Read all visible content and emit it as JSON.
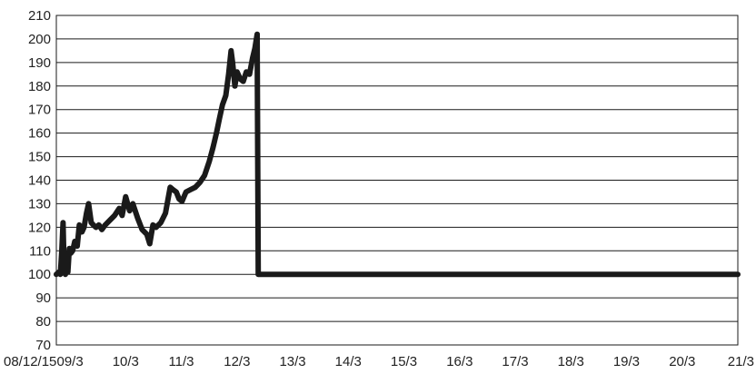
{
  "chart_data": {
    "type": "line",
    "title": "",
    "xlabel": "",
    "ylabel": "",
    "ylim": [
      70,
      210
    ],
    "yticks": [
      70,
      80,
      90,
      100,
      110,
      120,
      130,
      140,
      150,
      160,
      170,
      180,
      190,
      200,
      210
    ],
    "xlim": [
      "2008-12-15",
      "2021-03-15"
    ],
    "xtick_labels": [
      "08/12/15",
      "09/3",
      "10/3",
      "11/3",
      "12/3",
      "13/3",
      "14/3",
      "15/3",
      "16/3",
      "17/3",
      "18/3",
      "19/3",
      "20/3",
      "21/3"
    ],
    "xtick_dates": [
      "2008-12-15",
      "2009-03-15",
      "2010-03-15",
      "2011-03-15",
      "2012-03-15",
      "2013-03-15",
      "2014-03-15",
      "2015-03-15",
      "2016-03-15",
      "2017-03-15",
      "2018-03-15",
      "2019-03-15",
      "2020-03-15",
      "2021-03-15"
    ],
    "grid": true,
    "legend": "none",
    "series": [
      {
        "color": "#1a1a1a",
        "points": [
          [
            "2008-12-15",
            100
          ],
          [
            "2009-01-01",
            101
          ],
          [
            "2009-01-10",
            100
          ],
          [
            "2009-01-20",
            110
          ],
          [
            "2009-01-28",
            122
          ],
          [
            "2009-02-04",
            102
          ],
          [
            "2009-02-12",
            100
          ],
          [
            "2009-02-20",
            106
          ],
          [
            "2009-03-01",
            101
          ],
          [
            "2009-03-10",
            111
          ],
          [
            "2009-03-20",
            109
          ],
          [
            "2009-04-01",
            110
          ],
          [
            "2009-04-15",
            114
          ],
          [
            "2009-05-01",
            112
          ],
          [
            "2009-05-15",
            121
          ],
          [
            "2009-06-01",
            118
          ],
          [
            "2009-06-15",
            120
          ],
          [
            "2009-07-01",
            126
          ],
          [
            "2009-07-15",
            130
          ],
          [
            "2009-08-01",
            122
          ],
          [
            "2009-08-15",
            121
          ],
          [
            "2009-09-01",
            120
          ],
          [
            "2009-09-20",
            121
          ],
          [
            "2009-10-10",
            119
          ],
          [
            "2009-11-01",
            121
          ],
          [
            "2009-12-01",
            123
          ],
          [
            "2010-01-01",
            125
          ],
          [
            "2010-02-01",
            128
          ],
          [
            "2010-02-20",
            125
          ],
          [
            "2010-03-15",
            133
          ],
          [
            "2010-04-10",
            127
          ],
          [
            "2010-05-01",
            130
          ],
          [
            "2010-06-01",
            124
          ],
          [
            "2010-07-01",
            119
          ],
          [
            "2010-08-01",
            117
          ],
          [
            "2010-08-20",
            113
          ],
          [
            "2010-09-10",
            121
          ],
          [
            "2010-10-01",
            120
          ],
          [
            "2010-11-01",
            122
          ],
          [
            "2010-12-01",
            126
          ],
          [
            "2011-01-01",
            137
          ],
          [
            "2011-01-20",
            136
          ],
          [
            "2011-02-10",
            135
          ],
          [
            "2011-03-01",
            132
          ],
          [
            "2011-03-20",
            131
          ],
          [
            "2011-04-15",
            135
          ],
          [
            "2011-05-15",
            136
          ],
          [
            "2011-06-15",
            137
          ],
          [
            "2011-07-15",
            139
          ],
          [
            "2011-08-15",
            142
          ],
          [
            "2011-09-15",
            148
          ],
          [
            "2011-10-10",
            154
          ],
          [
            "2011-11-01",
            160
          ],
          [
            "2011-11-20",
            166
          ],
          [
            "2011-12-10",
            172
          ],
          [
            "2012-01-01",
            176
          ],
          [
            "2012-01-20",
            185
          ],
          [
            "2012-02-05",
            195
          ],
          [
            "2012-02-15",
            190
          ],
          [
            "2012-03-01",
            180
          ],
          [
            "2012-03-15",
            186
          ],
          [
            "2012-04-05",
            183
          ],
          [
            "2012-04-25",
            182
          ],
          [
            "2012-05-15",
            186
          ],
          [
            "2012-06-05",
            185
          ],
          [
            "2012-06-25",
            192
          ],
          [
            "2012-07-10",
            196
          ],
          [
            "2012-07-25",
            202
          ],
          [
            "2012-08-01",
            100
          ],
          [
            "2021-03-15",
            100
          ]
        ]
      }
    ]
  },
  "style": {
    "line_color": "#1a1a1a",
    "grid_color": "#1a1a1a",
    "text_color": "#222222"
  }
}
